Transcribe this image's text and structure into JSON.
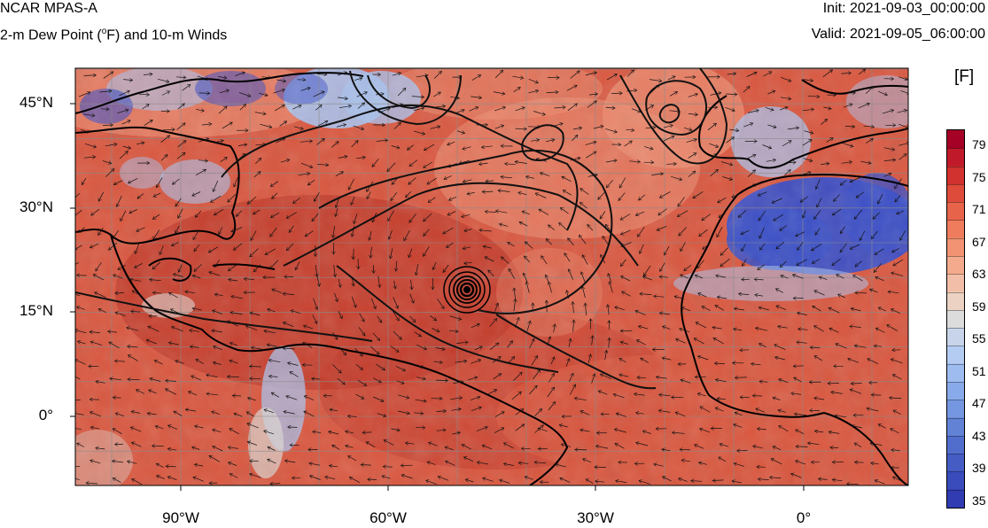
{
  "header": {
    "title": "NCAR MPAS-A",
    "field_prefix": "2-m Dew Point (",
    "field_degree": "o",
    "field_suffix": "F) and 10-m Winds",
    "init": "Init: 2021-09-03_00:00:00",
    "valid": "Valid: 2021-09-05_06:00:00"
  },
  "map": {
    "lat_labels": [
      "45°N",
      "30°N",
      "15°N",
      "0°"
    ],
    "lon_labels": [
      "90°W",
      "60°W",
      "30°W",
      "0°"
    ],
    "palette": {
      "warm_dark": "#c0392b",
      "warm_mid": "#d9573f",
      "warm_light": "#ec8f74",
      "cool_dark": "#3b4fc7",
      "cool_light": "#a9c2ee",
      "neutral": "#dcd6d2"
    }
  },
  "colorbar": {
    "units": "[F]",
    "labels": [
      "79",
      "75",
      "71",
      "67",
      "63",
      "59",
      "55",
      "51",
      "47",
      "43",
      "39",
      "35"
    ],
    "colors": [
      "#a50026",
      "#c01a2a",
      "#d1322f",
      "#de4b3b",
      "#e7644a",
      "#ee7c5d",
      "#f29373",
      "#f4aa8d",
      "#f2bea7",
      "#ecd2c2",
      "#dcdcdc",
      "#c8d4ea",
      "#b4cbf2",
      "#9fbcf0",
      "#89aaea",
      "#7596e0",
      "#6282d6",
      "#526ecd",
      "#455cc4",
      "#3a4bbc",
      "#313cb3"
    ]
  }
}
